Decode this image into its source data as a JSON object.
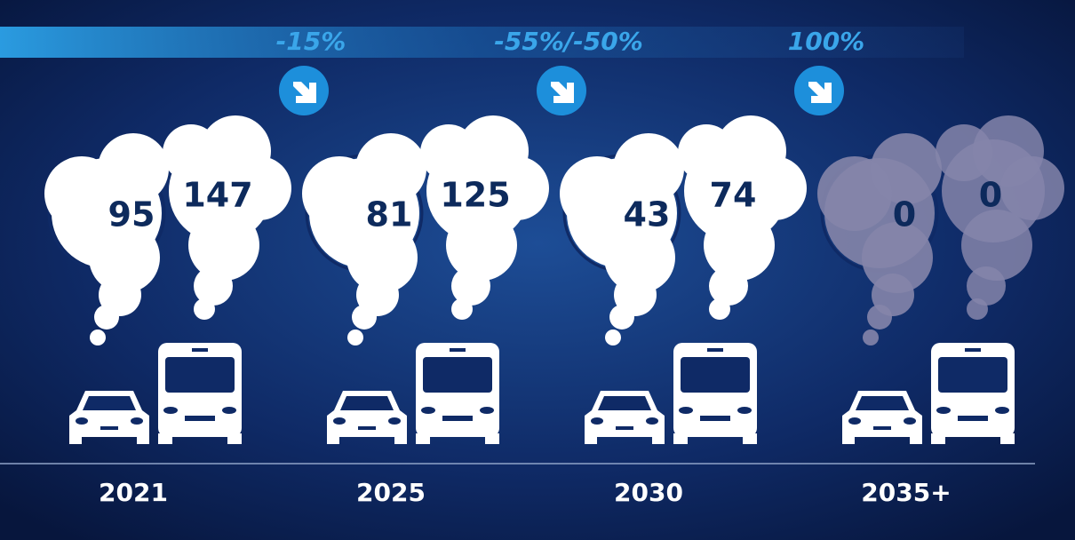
{
  "reductions": [
    "-15%",
    "-55%/-50%",
    "100%"
  ],
  "groups": [
    {
      "year": "2021",
      "car": 95,
      "van": 147
    },
    {
      "year": "2025",
      "car": 81,
      "van": 125
    },
    {
      "year": "2030",
      "car": 43,
      "van": 74
    },
    {
      "year": "2035+",
      "car": 0,
      "van": 0
    }
  ]
}
